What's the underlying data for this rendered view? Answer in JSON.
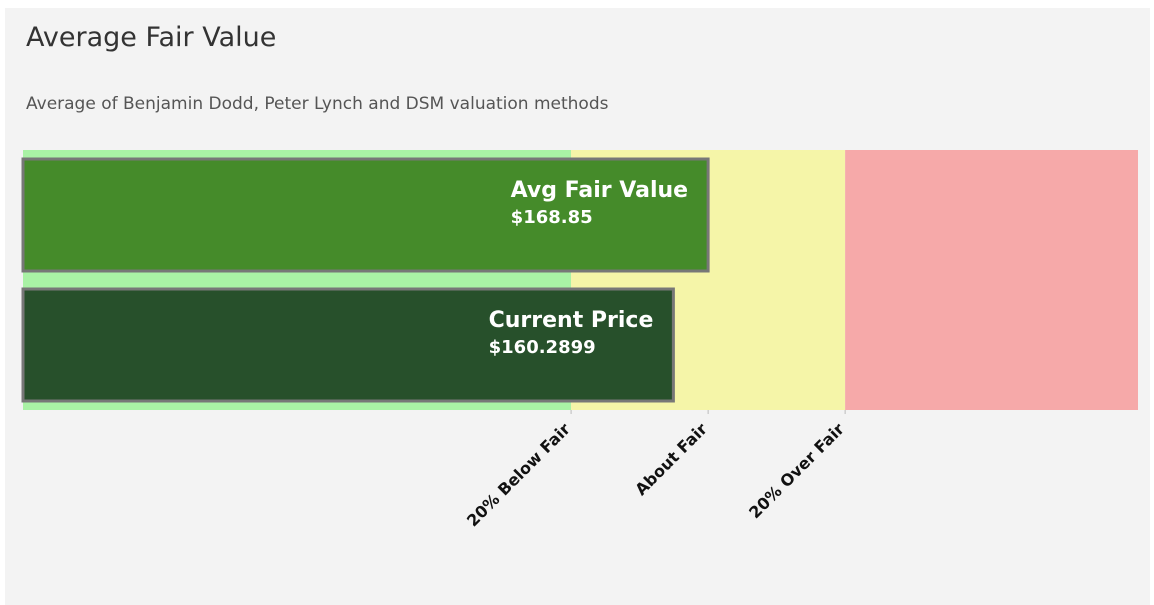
{
  "chart_data": {
    "type": "bar",
    "orientation": "horizontal",
    "title": "Average Fair Value",
    "subtitle": "Average of Benjamin Dodd, Peter Lynch and DSM valuation methods",
    "categories": [
      "Avg Fair Value",
      "Current Price"
    ],
    "values": [
      168.85,
      160.2899
    ],
    "value_labels": [
      "$168.85",
      "$160.2899"
    ],
    "colors": [
      "#458b2a",
      "#27502b"
    ],
    "bands": [
      {
        "from": 0,
        "to": 135.08,
        "color": "#a9f2a5"
      },
      {
        "from": 135.08,
        "to": 202.62,
        "color": "#f5f5a8"
      },
      {
        "from": 202.62,
        "to": 274.8,
        "color": "#f6a9a9"
      }
    ],
    "xlim": [
      0,
      274.8
    ],
    "xticks": [
      {
        "value": 135.08,
        "label": "20% Below Fair"
      },
      {
        "value": 168.85,
        "label": "About Fair"
      },
      {
        "value": 202.62,
        "label": "20% Over Fair"
      }
    ]
  }
}
